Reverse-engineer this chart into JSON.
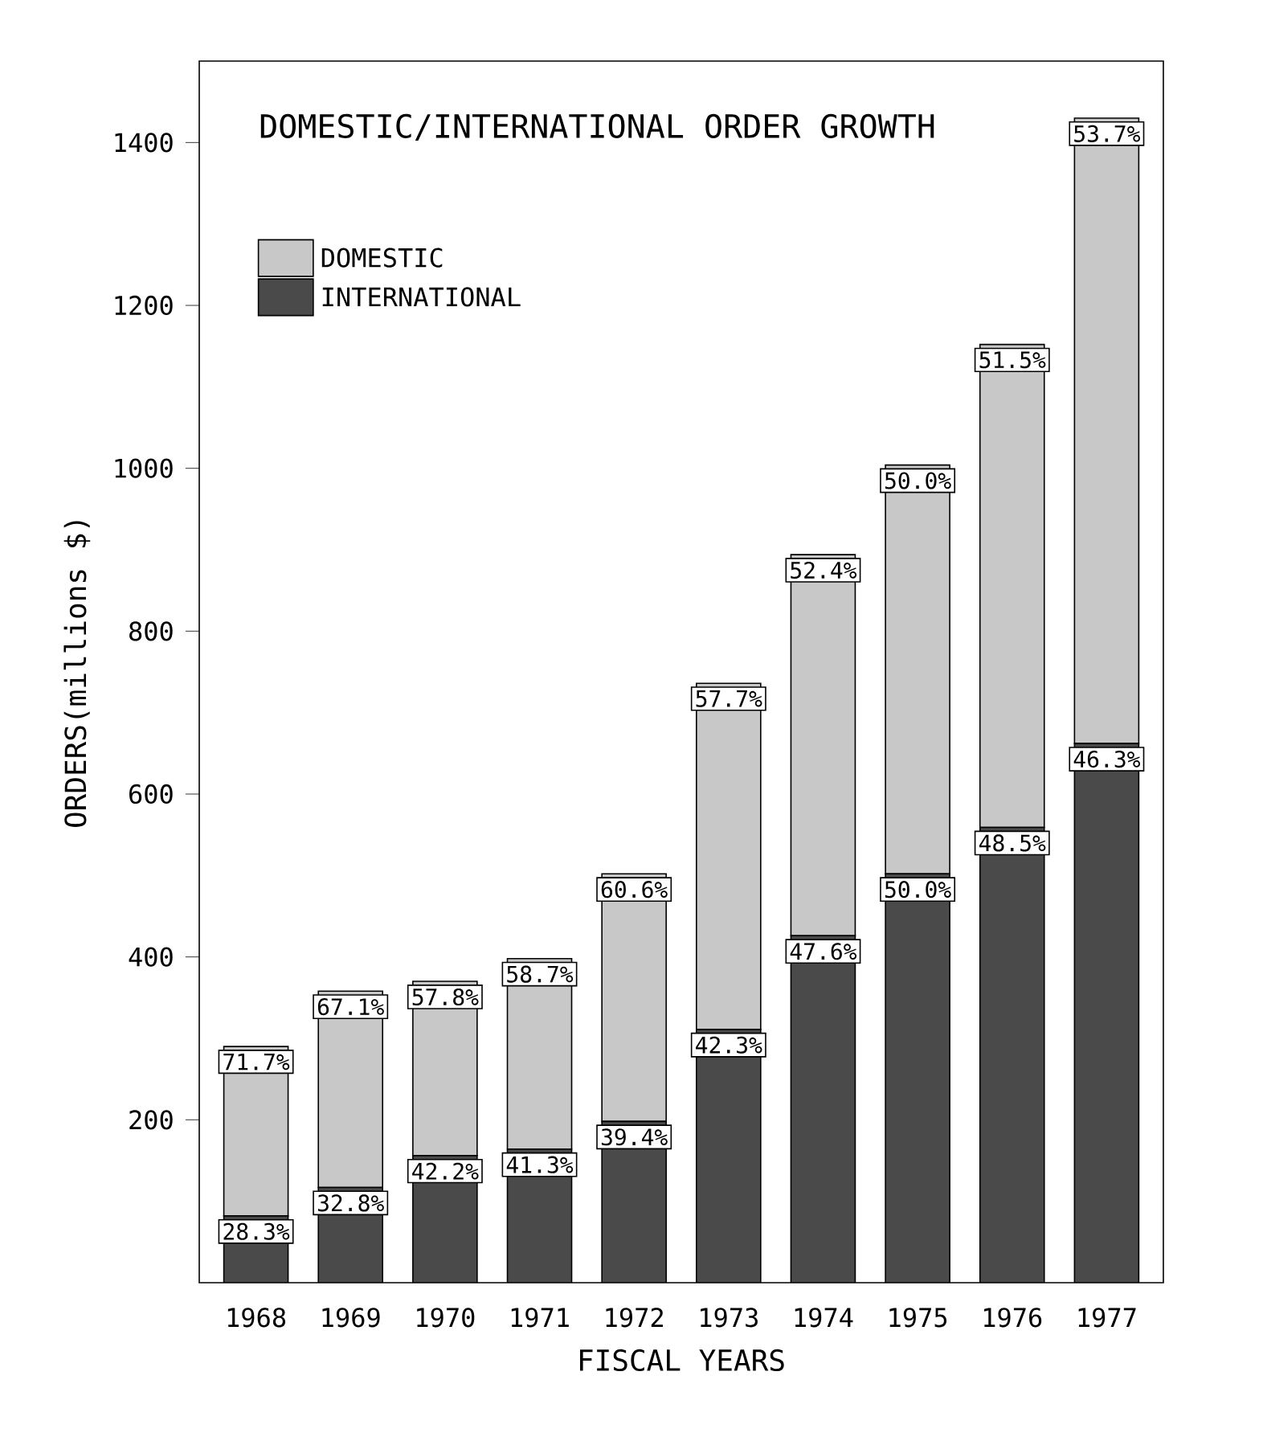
{
  "chart_data": {
    "type": "bar",
    "stacked": true,
    "title": "DOMESTIC/INTERNATIONAL ORDER GROWTH",
    "xlabel": "FISCAL YEARS",
    "ylabel": "ORDERS(millions $)",
    "categories": [
      "1968",
      "1969",
      "1970",
      "1971",
      "1972",
      "1973",
      "1974",
      "1975",
      "1976",
      "1977"
    ],
    "series": [
      {
        "name": "INTERNATIONAL",
        "color": "#4a4a4a",
        "values": [
          82,
          117,
          156,
          164,
          198,
          311,
          426,
          502,
          559,
          662
        ]
      },
      {
        "name": "DOMESTIC",
        "color": "#c8c8c8",
        "values": [
          208,
          241,
          214,
          234,
          304,
          425,
          468,
          502,
          593,
          768
        ]
      }
    ],
    "annotations": [
      {
        "text": "28.3%",
        "x": "1968",
        "y": 82
      },
      {
        "text": "32.8%",
        "x": "1969",
        "y": 117
      },
      {
        "text": "42.2%",
        "x": "1970",
        "y": 156
      },
      {
        "text": "41.3%",
        "x": "1971",
        "y": 164
      },
      {
        "text": "39.4%",
        "x": "1972",
        "y": 198
      },
      {
        "text": "42.3%",
        "x": "1973",
        "y": 311
      },
      {
        "text": "47.6%",
        "x": "1974",
        "y": 426
      },
      {
        "text": "50.0%",
        "x": "1975",
        "y": 502
      },
      {
        "text": "48.5%",
        "x": "1976",
        "y": 559
      },
      {
        "text": "46.3%",
        "x": "1977",
        "y": 662
      },
      {
        "text": "71.7%",
        "x": "1968",
        "y": 290
      },
      {
        "text": "67.1%",
        "x": "1969",
        "y": 358
      },
      {
        "text": "57.8%",
        "x": "1970",
        "y": 370
      },
      {
        "text": "58.7%",
        "x": "1971",
        "y": 398
      },
      {
        "text": "60.6%",
        "x": "1972",
        "y": 502
      },
      {
        "text": "57.7%",
        "x": "1973",
        "y": 736
      },
      {
        "text": "52.4%",
        "x": "1974",
        "y": 894
      },
      {
        "text": "50.0%",
        "x": "1975",
        "y": 1004
      },
      {
        "text": "51.5%",
        "x": "1976",
        "y": 1152
      },
      {
        "text": "53.7%",
        "x": "1977",
        "y": 1430
      }
    ],
    "ylim": [
      0,
      1500
    ],
    "yticks": [
      200,
      400,
      600,
      800,
      1000,
      1200,
      1400
    ],
    "legend": "top left"
  }
}
